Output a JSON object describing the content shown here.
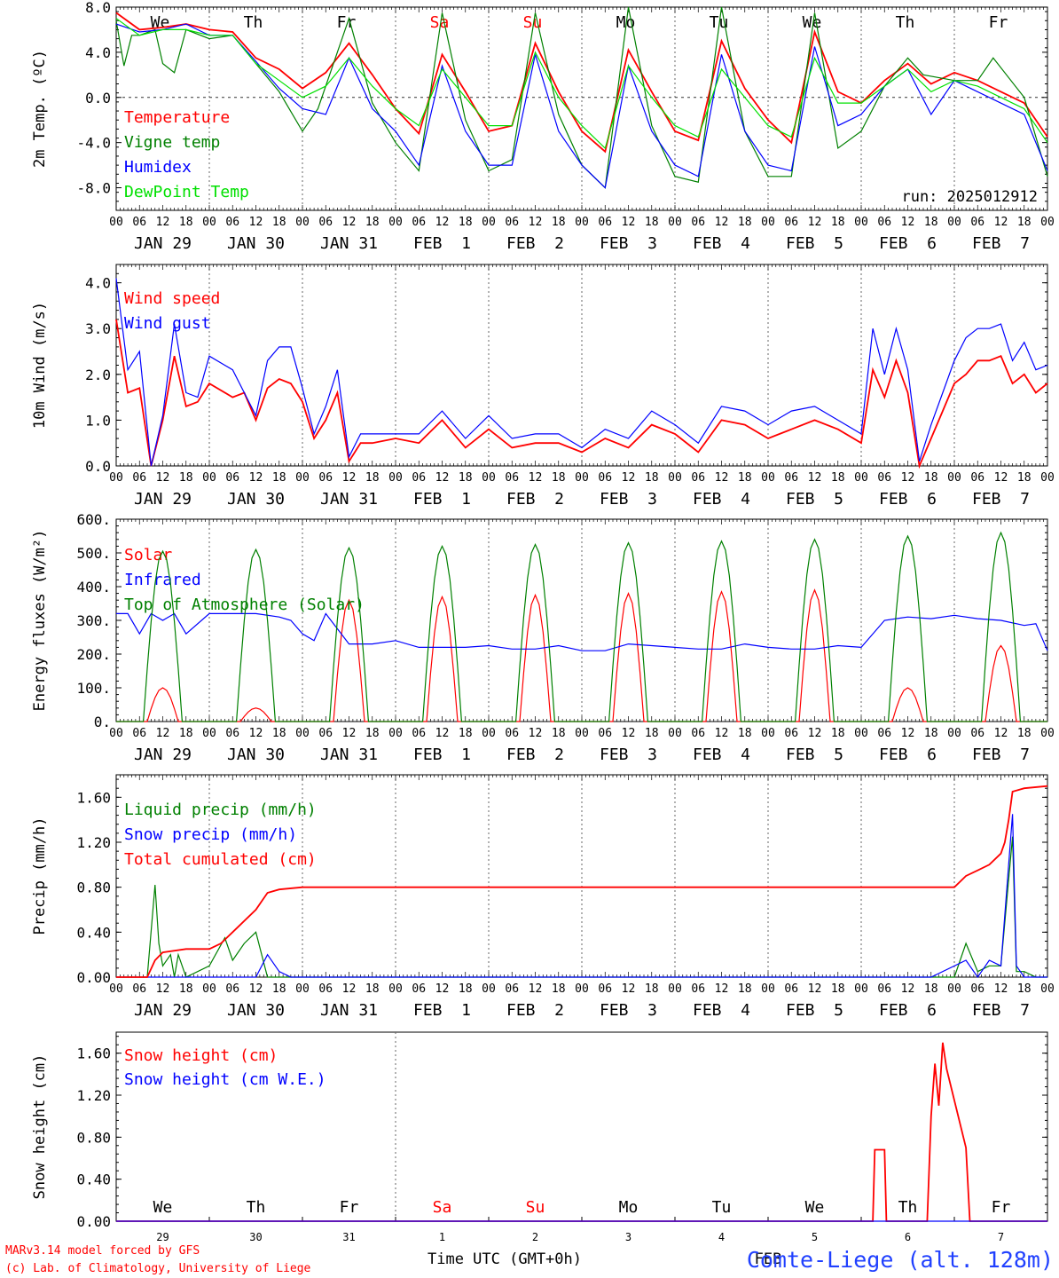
{
  "x_axis": {
    "hour_ticks": [
      "00",
      "06",
      "12",
      "18"
    ],
    "date_labels": [
      "JAN 29",
      "JAN 30",
      "JAN 31",
      "FEB  1",
      "FEB  2",
      "FEB  3",
      "FEB  4",
      "FEB  5",
      "FEB  6",
      "FEB  7"
    ],
    "weekday_labels": [
      "We",
      "Th",
      "Fr",
      "Sa",
      "Su",
      "Mo",
      "Tu",
      "We",
      "Th",
      "Fr"
    ],
    "weekend_days": [
      "Sa",
      "Su"
    ],
    "bottom_day_numbers": [
      "29",
      "30",
      "31",
      "1",
      "2",
      "3",
      "4",
      "5",
      "6",
      "7"
    ],
    "bottom_axis_title": "Time UTC (GMT+0h)",
    "bottom_month_label": "FEB"
  },
  "footer": {
    "model_line": "MARv3.14 model forced by GFS",
    "credit_line": "(c) Lab. of Climatology, University of Liege",
    "station": "Comte-Liege (alt. 128m)"
  },
  "colors": {
    "red": "#ff0000",
    "green": "#008000",
    "blue": "#0000ff",
    "light_green": "#00e000",
    "grid": "#555555"
  },
  "chart_data": [
    {
      "id": "temperature",
      "type": "line",
      "ylabel": "2m Temp. (ºC)",
      "ylim": [
        -10,
        8
      ],
      "yticks": [
        8,
        4,
        0,
        -4,
        -8
      ],
      "ytick_labels": [
        "8.0",
        "4.0",
        "0.0",
        "-4.0",
        "-8.0"
      ],
      "run_label": "run: 2025012912",
      "x_unit": "hours since Jan 29 00 UTC",
      "series": [
        {
          "name": "Temperature",
          "color": "#ff0000",
          "x": [
            0,
            6,
            12,
            18,
            24,
            30,
            36,
            42,
            48,
            54,
            60,
            66,
            72,
            78,
            84,
            90,
            96,
            102,
            108,
            114,
            120,
            126,
            132,
            138,
            144,
            150,
            156,
            162,
            168,
            174,
            180,
            186,
            192,
            198,
            204,
            210,
            216,
            222,
            234,
            240
          ],
          "y": [
            7.5,
            6.0,
            6.2,
            6.5,
            6.0,
            5.8,
            3.5,
            2.5,
            0.8,
            2.2,
            4.8,
            2.0,
            -1.0,
            -3.2,
            3.8,
            0.5,
            -3.0,
            -2.5,
            4.8,
            0.5,
            -3.0,
            -4.8,
            4.2,
            0.5,
            -3.0,
            -3.8,
            5.0,
            0.8,
            -2.0,
            -4.0,
            5.8,
            0.5,
            -0.5,
            1.5,
            3.0,
            1.2,
            2.2,
            1.5,
            -0.5,
            -3.5
          ]
        },
        {
          "name": "Vigne temp",
          "color": "#008000",
          "x": [
            0,
            2,
            4,
            6,
            10,
            12,
            15,
            18,
            24,
            30,
            36,
            42,
            48,
            52,
            60,
            66,
            72,
            78,
            84,
            90,
            96,
            102,
            108,
            114,
            120,
            126,
            132,
            138,
            144,
            150,
            156,
            162,
            168,
            174,
            180,
            186,
            192,
            198,
            204,
            208,
            216,
            222,
            226,
            234,
            240
          ],
          "y": [
            6.8,
            2.8,
            5.5,
            5.5,
            6.0,
            3.0,
            2.2,
            6.0,
            5.2,
            5.5,
            3.0,
            0.5,
            -3.0,
            -1.0,
            7.0,
            -0.5,
            -4.0,
            -6.5,
            7.5,
            -2.0,
            -6.5,
            -5.5,
            7.5,
            -1.5,
            -6.0,
            -8.0,
            8.0,
            -2.5,
            -7.0,
            -7.5,
            8.0,
            -3.0,
            -7.0,
            -7.0,
            7.5,
            -4.5,
            -3.0,
            1.0,
            3.5,
            2.0,
            1.5,
            1.5,
            3.5,
            0.0,
            -7.0
          ]
        },
        {
          "name": "Humidex",
          "color": "#0000ff",
          "x": [
            0,
            6,
            12,
            18,
            24,
            30,
            36,
            42,
            48,
            54,
            60,
            66,
            72,
            78,
            84,
            90,
            96,
            102,
            108,
            114,
            120,
            126,
            132,
            138,
            144,
            150,
            156,
            162,
            168,
            174,
            180,
            186,
            192,
            198,
            204,
            210,
            216,
            222,
            234,
            240
          ],
          "y": [
            6.5,
            5.8,
            6.0,
            6.5,
            5.5,
            5.5,
            3.2,
            0.8,
            -1.0,
            -1.5,
            3.5,
            -1.0,
            -3.0,
            -6.0,
            2.8,
            -3.0,
            -6.0,
            -6.0,
            3.8,
            -3.0,
            -6.0,
            -8.0,
            2.8,
            -3.0,
            -6.0,
            -7.0,
            3.8,
            -3.0,
            -6.0,
            -6.5,
            4.5,
            -2.5,
            -1.5,
            1.0,
            2.5,
            -1.5,
            1.5,
            0.5,
            -1.5,
            -6.5
          ]
        },
        {
          "name": "DewPoint Temp",
          "color": "#00e000",
          "x": [
            0,
            6,
            12,
            18,
            24,
            30,
            36,
            42,
            48,
            54,
            60,
            66,
            72,
            78,
            84,
            90,
            96,
            102,
            108,
            114,
            120,
            126,
            132,
            138,
            144,
            150,
            156,
            162,
            168,
            174,
            180,
            186,
            192,
            198,
            204,
            210,
            216,
            222,
            234,
            240
          ],
          "y": [
            7.0,
            5.5,
            6.0,
            6.0,
            5.5,
            5.5,
            3.0,
            1.5,
            0.0,
            1.0,
            3.5,
            1.0,
            -1.0,
            -2.5,
            2.5,
            0.0,
            -2.5,
            -2.5,
            4.0,
            0.0,
            -2.5,
            -4.5,
            2.8,
            0.0,
            -2.5,
            -3.5,
            2.5,
            0.0,
            -2.5,
            -3.5,
            3.5,
            -0.5,
            -0.5,
            1.0,
            2.5,
            0.5,
            1.5,
            1.0,
            -1.0,
            -4.0
          ]
        }
      ]
    },
    {
      "id": "wind",
      "type": "line",
      "ylabel": "10m Wind (m/s)",
      "ylim": [
        0,
        4.4
      ],
      "yticks": [
        0,
        1,
        2,
        3,
        4
      ],
      "ytick_labels": [
        "0.0",
        "1.0",
        "2.0",
        "3.0",
        "4.0"
      ],
      "x_unit": "hours since Jan 29 00 UTC",
      "series": [
        {
          "name": "Wind speed",
          "color": "#ff0000",
          "x": [
            0,
            3,
            6,
            9,
            12,
            15,
            18,
            21,
            24,
            30,
            33,
            36,
            39,
            42,
            45,
            48,
            51,
            54,
            57,
            60,
            63,
            66,
            72,
            78,
            84,
            90,
            96,
            102,
            108,
            114,
            120,
            126,
            132,
            138,
            144,
            150,
            156,
            162,
            168,
            174,
            180,
            186,
            192,
            195,
            198,
            201,
            204,
            207,
            210,
            213,
            216,
            219,
            222,
            225,
            228,
            231,
            234,
            237,
            240
          ],
          "y": [
            3.2,
            1.6,
            1.7,
            0.0,
            1.0,
            2.4,
            1.3,
            1.4,
            1.8,
            1.5,
            1.6,
            1.0,
            1.7,
            1.9,
            1.8,
            1.4,
            0.6,
            1.0,
            1.6,
            0.1,
            0.5,
            0.5,
            0.6,
            0.5,
            1.0,
            0.4,
            0.8,
            0.4,
            0.5,
            0.5,
            0.3,
            0.6,
            0.4,
            0.9,
            0.7,
            0.3,
            1.0,
            0.9,
            0.6,
            0.8,
            1.0,
            0.8,
            0.5,
            2.1,
            1.5,
            2.3,
            1.6,
            0.0,
            0.6,
            1.2,
            1.8,
            2.0,
            2.3,
            2.3,
            2.4,
            1.8,
            2.0,
            1.6,
            1.8
          ]
        },
        {
          "name": "Wind gust",
          "color": "#0000ff",
          "x": [
            0,
            3,
            6,
            9,
            12,
            15,
            18,
            21,
            24,
            30,
            33,
            36,
            39,
            42,
            45,
            48,
            51,
            54,
            57,
            60,
            63,
            66,
            72,
            78,
            84,
            90,
            96,
            102,
            108,
            114,
            120,
            126,
            132,
            138,
            144,
            150,
            156,
            162,
            168,
            174,
            180,
            186,
            192,
            195,
            198,
            201,
            204,
            207,
            210,
            213,
            216,
            219,
            222,
            225,
            228,
            231,
            234,
            237,
            240
          ],
          "y": [
            4.1,
            2.1,
            2.5,
            0.0,
            1.1,
            3.1,
            1.6,
            1.5,
            2.4,
            2.1,
            1.6,
            1.1,
            2.3,
            2.6,
            2.6,
            1.7,
            0.7,
            1.3,
            2.1,
            0.2,
            0.7,
            0.7,
            0.7,
            0.7,
            1.2,
            0.6,
            1.1,
            0.6,
            0.7,
            0.7,
            0.4,
            0.8,
            0.6,
            1.2,
            0.9,
            0.5,
            1.3,
            1.2,
            0.9,
            1.2,
            1.3,
            1.0,
            0.7,
            3.0,
            2.0,
            3.0,
            2.1,
            0.1,
            0.9,
            1.6,
            2.3,
            2.8,
            3.0,
            3.0,
            3.1,
            2.3,
            2.7,
            2.1,
            2.2
          ]
        }
      ]
    },
    {
      "id": "energy",
      "type": "line",
      "ylabel": "Energy fluxes (W/m²)",
      "ylim": [
        0,
        600
      ],
      "yticks": [
        0,
        100,
        200,
        300,
        400,
        500,
        600
      ],
      "ytick_labels": [
        "0.",
        "100.",
        "200.",
        "300.",
        "400.",
        "500.",
        "600."
      ],
      "x_unit": "hours since Jan 29 00 UTC",
      "series": [
        {
          "name": "Solar",
          "peaks": [
            100,
            40,
            360,
            370,
            375,
            380,
            385,
            390,
            100,
            225
          ],
          "color": "#ff0000"
        },
        {
          "name": "Infrared",
          "color": "#0000ff",
          "x": [
            0,
            3,
            6,
            9,
            12,
            15,
            18,
            24,
            30,
            36,
            42,
            45,
            48,
            51,
            54,
            60,
            66,
            72,
            78,
            84,
            90,
            96,
            102,
            108,
            114,
            120,
            126,
            132,
            138,
            144,
            150,
            156,
            162,
            168,
            174,
            180,
            186,
            192,
            198,
            204,
            210,
            216,
            222,
            228,
            234,
            237,
            240
          ],
          "y": [
            320,
            320,
            260,
            320,
            300,
            320,
            260,
            320,
            320,
            320,
            310,
            300,
            260,
            240,
            320,
            230,
            230,
            240,
            220,
            220,
            220,
            225,
            215,
            215,
            225,
            210,
            210,
            230,
            225,
            220,
            215,
            215,
            230,
            220,
            215,
            215,
            225,
            220,
            300,
            310,
            305,
            315,
            305,
            300,
            285,
            290,
            210
          ]
        },
        {
          "name": "Top of Atmosphere (Solar)",
          "peaks": [
            505,
            510,
            515,
            520,
            525,
            530,
            535,
            540,
            550,
            560
          ],
          "color": "#008000"
        }
      ]
    },
    {
      "id": "precip",
      "type": "line",
      "ylabel": "Precip (mm/h)",
      "ylim": [
        0,
        1.8
      ],
      "yticks": [
        0,
        0.4,
        0.8,
        1.2,
        1.6
      ],
      "ytick_labels": [
        "0.00",
        "0.40",
        "0.80",
        "1.20",
        "1.60"
      ],
      "x_unit": "hours since Jan 29 00 UTC",
      "series": [
        {
          "name": "Liquid precip (mm/h)",
          "color": "#008000",
          "x": [
            0,
            8,
            10,
            11,
            12,
            14,
            15,
            16,
            18,
            24,
            28,
            30,
            33,
            36,
            39,
            40,
            42,
            45,
            48,
            216,
            219,
            222,
            225,
            228,
            231,
            232,
            234,
            237,
            240
          ],
          "y": [
            0,
            0,
            0.82,
            0.3,
            0.1,
            0.2,
            0.0,
            0.2,
            0.0,
            0.1,
            0.35,
            0.15,
            0.3,
            0.4,
            0.0,
            0.0,
            0.0,
            0.0,
            0.0,
            0.0,
            0.3,
            0.05,
            0.1,
            0.1,
            1.25,
            0.05,
            0.05,
            0.0,
            0.0
          ]
        },
        {
          "name": "Snow precip (mm/h)",
          "color": "#0000ff",
          "x": [
            0,
            30,
            36,
            39,
            42,
            45,
            48,
            210,
            219,
            222,
            225,
            228,
            231,
            232,
            234,
            237,
            240
          ],
          "y": [
            0,
            0,
            0,
            0.2,
            0.05,
            0.0,
            0.0,
            0.0,
            0.15,
            0.0,
            0.15,
            0.1,
            1.45,
            0.1,
            0.0,
            0.0,
            0.0
          ]
        },
        {
          "name": "Total cumulated (cm)",
          "color": "#ff0000",
          "x": [
            0,
            8,
            10,
            12,
            18,
            24,
            27,
            30,
            36,
            39,
            42,
            48,
            60,
            216,
            219,
            222,
            225,
            228,
            229,
            230,
            231,
            234,
            240
          ],
          "y": [
            0,
            0,
            0.15,
            0.22,
            0.25,
            0.25,
            0.3,
            0.4,
            0.6,
            0.75,
            0.78,
            0.8,
            0.8,
            0.8,
            0.9,
            0.95,
            1.0,
            1.1,
            1.2,
            1.4,
            1.65,
            1.68,
            1.7
          ]
        }
      ]
    },
    {
      "id": "snow",
      "type": "line",
      "ylabel": "Snow height (cm)",
      "ylim": [
        0,
        1.8
      ],
      "yticks": [
        0,
        0.4,
        0.8,
        1.2,
        1.6
      ],
      "ytick_labels": [
        "0.00",
        "0.40",
        "0.80",
        "1.20",
        "1.60"
      ],
      "x_unit": "hours since Jan 29 00 UTC",
      "series": [
        {
          "name": "Snow height (cm)",
          "color": "#ff0000",
          "x": [
            0,
            195,
            195.5,
            198,
            198.5,
            209,
            210,
            211,
            212,
            213,
            214,
            219,
            220,
            240
          ],
          "y": [
            0,
            0,
            0.68,
            0.68,
            0,
            0,
            1.0,
            1.5,
            1.1,
            1.7,
            1.45,
            0.7,
            0,
            0
          ]
        },
        {
          "name": "Snow height (cm W.E.)",
          "color": "#0000ff",
          "x": [
            0,
            240
          ],
          "y": [
            0,
            0
          ]
        }
      ]
    }
  ]
}
